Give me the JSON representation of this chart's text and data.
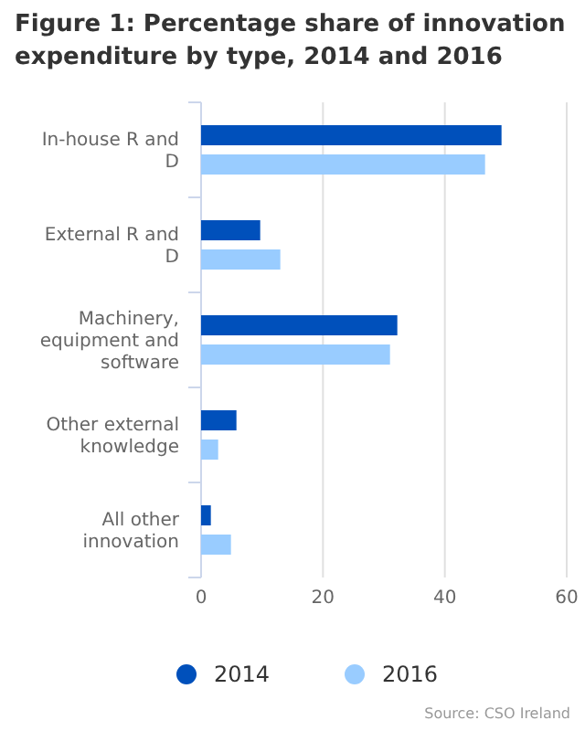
{
  "chart_data": {
    "type": "bar",
    "orientation": "horizontal",
    "title": "Figure 1: Percentage share of innovation expenditure by type, 2014 and 2016",
    "categories": [
      "In-house R and D",
      "External R and D",
      "Machinery, equipment and software",
      "Other external knowledge",
      "All other innovation"
    ],
    "series": [
      {
        "name": "2014",
        "color": "#0050bb",
        "values": [
          49.3,
          9.7,
          32.2,
          5.8,
          1.6
        ]
      },
      {
        "name": "2016",
        "color": "#99ccff",
        "values": [
          46.6,
          13.0,
          31.0,
          2.8,
          4.9
        ]
      }
    ],
    "xlim": [
      0,
      60
    ],
    "xticks": [
      0,
      20,
      40,
      60
    ],
    "grid": "x",
    "legend": "bottom",
    "annotations": [
      "Source: CSO Ireland"
    ]
  }
}
